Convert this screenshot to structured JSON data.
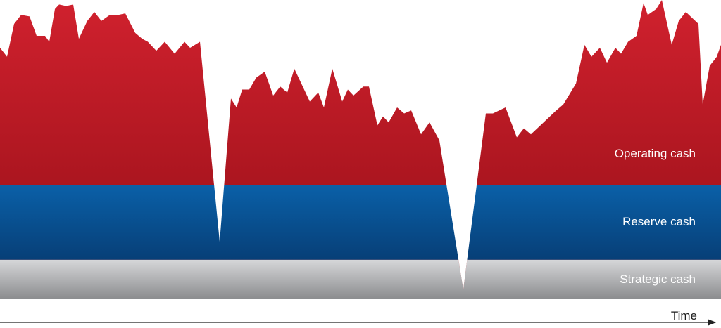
{
  "chart_data": {
    "type": "area",
    "xlabel": "Time",
    "ylabel": "",
    "xlim": [
      0,
      1024
    ],
    "ylim": [
      0,
      100
    ],
    "grid": false,
    "colors": {
      "operating_top": "#d0212e",
      "operating_bottom": "#960f17",
      "reserve_top": "#0a60a8",
      "reserve_bottom": "#073f77",
      "strategic_top": "#d6d7d9",
      "strategic_bottom": "#8c8d8f",
      "axis": "#222222"
    },
    "bands": [
      {
        "name": "Strategic cash",
        "from": 0,
        "to": 13
      },
      {
        "name": "Reserve cash",
        "from": 13,
        "to": 38
      }
    ],
    "series": [
      {
        "name": "Operating cash",
        "x": [
          0,
          10,
          20,
          30,
          42,
          52,
          64,
          70,
          78,
          84,
          94,
          104,
          112,
          124,
          134,
          144,
          156,
          168,
          178,
          192,
          202,
          210,
          222,
          234,
          248,
          262,
          270,
          284,
          312,
          328,
          336,
          344,
          354,
          364,
          376,
          388,
          398,
          408,
          418,
          430,
          440,
          452,
          460,
          472,
          486,
          494,
          502,
          516,
          524,
          536,
          544,
          552,
          564,
          574,
          584,
          598,
          610,
          624,
          658,
          690,
          700,
          718,
          734,
          744,
          754,
          772,
          790,
          800,
          818,
          830,
          840,
          852,
          862,
          874,
          882,
          892,
          904,
          914,
          920,
          932,
          940,
          954,
          964,
          974,
          992,
          998,
          1008,
          1018,
          1024
        ],
        "values": [
          84,
          81,
          92,
          95,
          94.5,
          88,
          88,
          86,
          97,
          98.5,
          98,
          98.5,
          87,
          93,
          96,
          93,
          95,
          95,
          95.5,
          89,
          87,
          86,
          83,
          86,
          82,
          86,
          84,
          86,
          19,
          67,
          64,
          70,
          70,
          74,
          76,
          68,
          71,
          69,
          77,
          71,
          66,
          69,
          64,
          77,
          66,
          70,
          68,
          71,
          71,
          58,
          61,
          59,
          64,
          62,
          63,
          55,
          59,
          53,
          3,
          62,
          62,
          64,
          54,
          57,
          55,
          59,
          63,
          65,
          72,
          85,
          81,
          84,
          79,
          84,
          82,
          86,
          88,
          99,
          95,
          97,
          100,
          85,
          93,
          96,
          92,
          65,
          78,
          81,
          85
        ]
      }
    ],
    "annotations": [
      {
        "text": "Operating cash",
        "band": "operating"
      },
      {
        "text": "Reserve cash",
        "band": "reserve"
      },
      {
        "text": "Strategic cash",
        "band": "strategic"
      }
    ]
  }
}
